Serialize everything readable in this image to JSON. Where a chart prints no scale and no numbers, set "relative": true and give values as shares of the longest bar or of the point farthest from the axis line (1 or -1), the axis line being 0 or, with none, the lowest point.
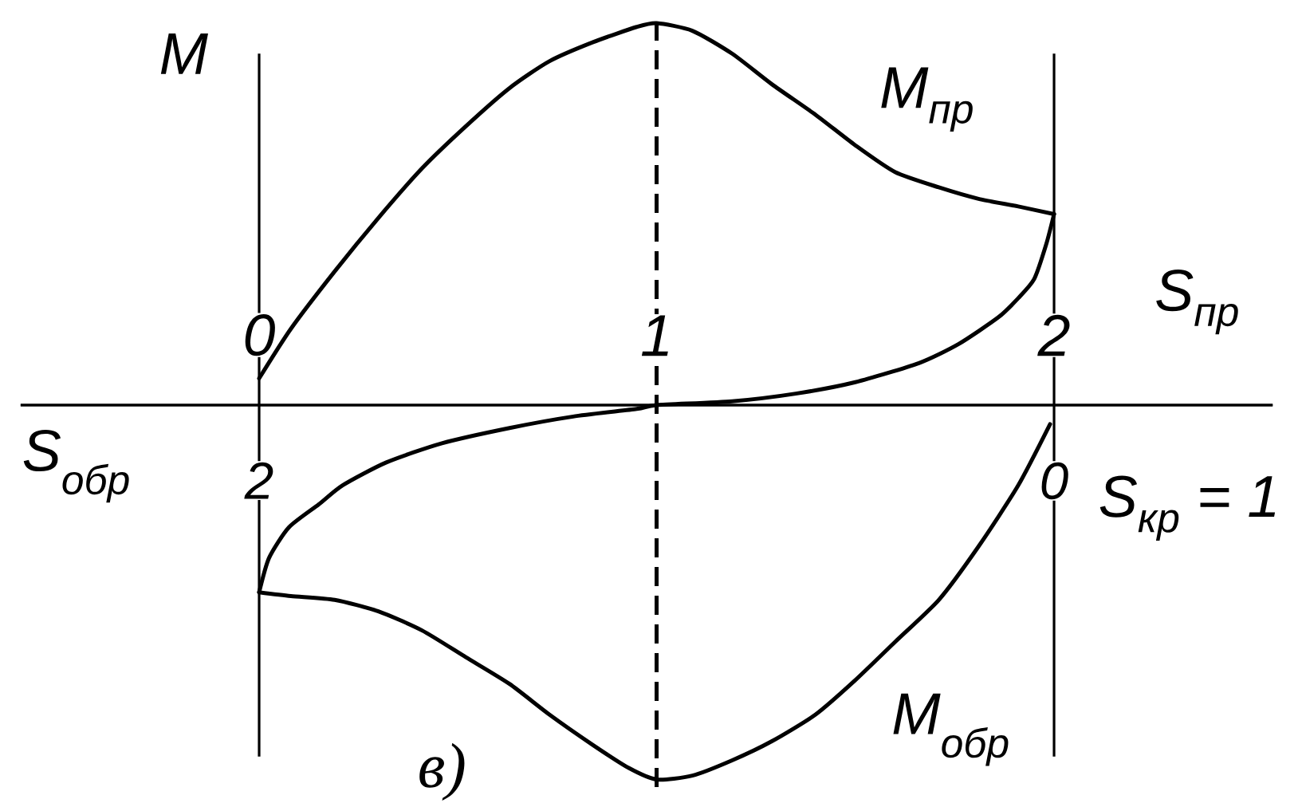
{
  "chart_data": {
    "type": "line",
    "relative": true,
    "ylabel": "M",
    "xlabel": "S$_{пр}$",
    "x2label": "S$_{обр}$",
    "xlim": [
      -0.6,
      2.55
    ],
    "xticks": [
      0,
      1,
      2
    ],
    "x2lim": [
      2.6,
      -0.55
    ],
    "x2ticks": [
      2,
      0
    ],
    "series": [
      {
        "name": "M$_{пр}$",
        "color": "#000000",
        "x": [
          0,
          0.08,
          0.19,
          0.3,
          0.41,
          0.52,
          0.63,
          0.73,
          0.84,
          0.95,
          1,
          1.09,
          1.19,
          1.29,
          1.4,
          1.5,
          1.6,
          1.71,
          1.81,
          1.91,
          2
        ],
        "values": [
          0.07,
          0.2,
          0.35,
          0.49,
          0.62,
          0.73,
          0.83,
          0.9,
          0.95,
          0.99,
          1,
          0.98,
          0.92,
          0.84,
          0.76,
          0.68,
          0.61,
          0.57,
          0.54,
          0.52,
          0.5
        ]
      },
      {
        "color": "#000000",
        "x": [
          0,
          0.025,
          0.075,
          0.15,
          0.21,
          0.32,
          0.46,
          0.63,
          0.79,
          0.95,
          1,
          1.19,
          1.35,
          1.5,
          1.66,
          1.76,
          1.86,
          1.91,
          1.95,
          1.98,
          2
        ],
        "values": [
          -0.49,
          -0.4,
          -0.32,
          -0.26,
          -0.21,
          -0.15,
          -0.1,
          -0.06,
          -0.03,
          -0.01,
          0,
          0.01,
          0.03,
          0.06,
          0.11,
          0.16,
          0.23,
          0.28,
          0.33,
          0.42,
          0.5
        ]
      },
      {
        "name": "M$_{обр}$",
        "color": "#000000",
        "x": [
          0,
          0.08,
          0.19,
          0.3,
          0.41,
          0.52,
          0.63,
          0.73,
          0.84,
          0.93,
          1,
          1.09,
          1.19,
          1.29,
          1.4,
          1.5,
          1.6,
          1.71,
          1.81,
          1.91,
          1.99
        ],
        "values": [
          -0.49,
          -0.5,
          -0.51,
          -0.54,
          -0.59,
          -0.66,
          -0.73,
          -0.81,
          -0.89,
          -0.95,
          -0.98,
          -0.97,
          -0.93,
          -0.88,
          -0.81,
          -0.72,
          -0.62,
          -0.51,
          -0.37,
          -0.21,
          -0.05
        ]
      }
    ],
    "ref_lines": [
      {
        "axis": "x",
        "value": 0,
        "color": "#000000",
        "line_style": "solid"
      },
      {
        "axis": "x",
        "value": 1,
        "color": "#000000",
        "line_style": "dashed"
      },
      {
        "axis": "x",
        "value": 2,
        "color": "#000000",
        "line_style": "solid"
      }
    ],
    "annotations": [
      "S$_{кр}$ = 1",
      "в)"
    ]
  }
}
